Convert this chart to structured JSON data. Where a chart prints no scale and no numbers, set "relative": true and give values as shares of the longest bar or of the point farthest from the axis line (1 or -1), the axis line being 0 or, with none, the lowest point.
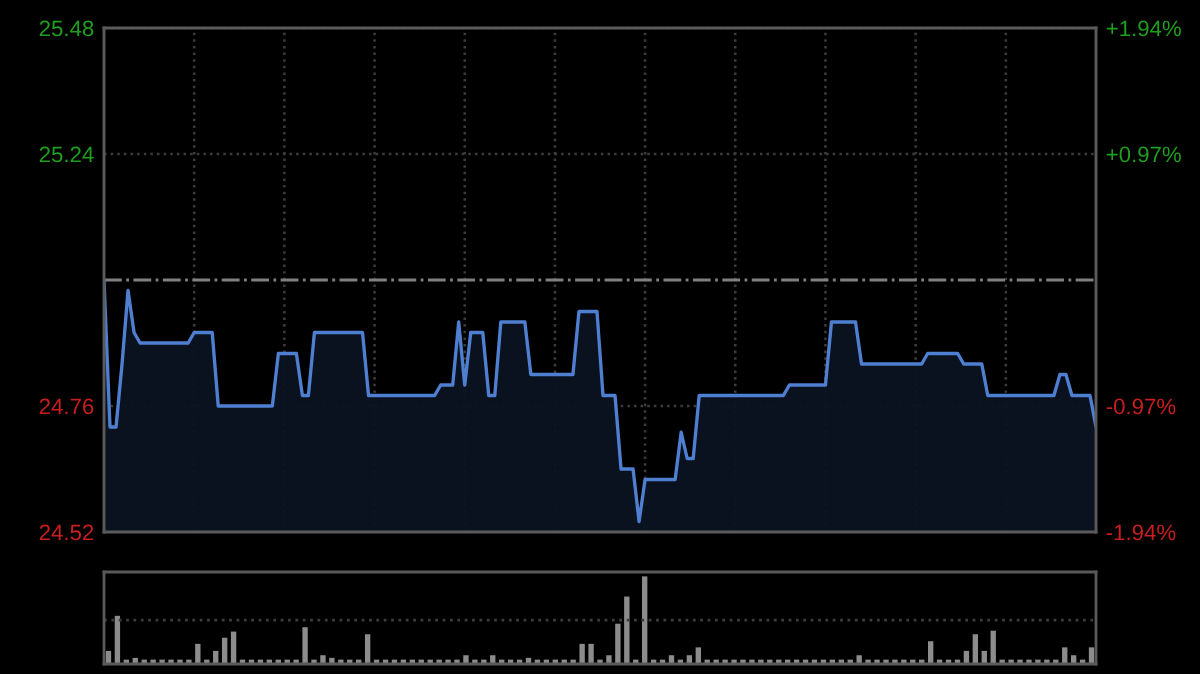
{
  "chart_data": [
    {
      "type": "area",
      "categories": [
        null,
        null,
        null,
        null,
        null,
        null,
        null,
        null,
        null,
        null,
        null,
        null,
        null,
        null,
        null,
        null,
        null,
        null,
        null,
        null,
        null,
        null,
        null,
        null,
        null,
        null,
        null,
        null,
        null,
        null,
        null,
        null,
        null,
        null,
        null,
        null,
        null,
        null,
        null,
        null,
        null,
        null,
        null,
        null,
        null,
        null,
        null,
        null,
        null,
        null,
        null,
        null,
        null,
        null,
        null,
        null,
        null,
        null,
        null,
        null,
        null,
        null,
        null,
        null,
        null,
        null,
        null,
        null,
        null,
        null,
        null,
        null,
        null,
        null,
        null,
        null,
        null,
        null,
        null,
        null,
        null,
        null,
        null,
        null,
        null,
        null,
        null,
        null,
        null,
        null,
        null,
        null,
        null,
        null,
        null,
        null,
        null,
        null,
        null,
        null,
        null,
        null,
        null,
        null,
        null,
        null,
        null,
        null,
        null,
        null,
        null,
        null,
        null,
        null,
        null,
        null,
        null,
        null,
        null,
        null,
        null,
        null,
        null,
        null,
        null,
        null,
        null,
        null,
        null,
        null,
        null,
        null,
        null,
        null,
        null,
        null,
        null,
        null,
        null,
        null,
        null,
        null,
        null,
        null,
        null,
        null,
        null,
        null,
        null,
        null,
        null,
        null,
        null,
        null,
        null,
        null,
        null,
        null,
        null,
        null,
        null,
        null,
        null,
        null,
        null,
        null
      ],
      "series": [
        {
          "color": "#4f7fd0",
          "values": [
            25.0,
            24.72,
            24.72,
            24.84,
            24.98,
            24.9,
            24.88,
            24.88,
            24.88,
            24.88,
            24.88,
            24.88,
            24.88,
            24.88,
            24.88,
            24.9,
            24.9,
            24.9,
            24.9,
            24.76,
            24.76,
            24.76,
            24.76,
            24.76,
            24.76,
            24.76,
            24.76,
            24.76,
            24.76,
            24.86,
            24.86,
            24.86,
            24.86,
            24.78,
            24.78,
            24.9,
            24.9,
            24.9,
            24.9,
            24.9,
            24.9,
            24.9,
            24.9,
            24.9,
            24.78,
            24.78,
            24.78,
            24.78,
            24.78,
            24.78,
            24.78,
            24.78,
            24.78,
            24.78,
            24.78,
            24.78,
            24.8,
            24.8,
            24.8,
            24.92,
            24.8,
            24.9,
            24.9,
            24.9,
            24.78,
            24.78,
            24.92,
            24.92,
            24.92,
            24.92,
            24.92,
            24.82,
            24.82,
            24.82,
            24.82,
            24.82,
            24.82,
            24.82,
            24.82,
            24.94,
            24.94,
            24.94,
            24.94,
            24.78,
            24.78,
            24.78,
            24.64,
            24.64,
            24.64,
            24.54,
            24.62,
            24.62,
            24.62,
            24.62,
            24.62,
            24.62,
            24.71,
            24.66,
            24.66,
            24.78,
            24.78,
            24.78,
            24.78,
            24.78,
            24.78,
            24.78,
            24.78,
            24.78,
            24.78,
            24.78,
            24.78,
            24.78,
            24.78,
            24.78,
            24.8,
            24.8,
            24.8,
            24.8,
            24.8,
            24.8,
            24.8,
            24.92,
            24.92,
            24.92,
            24.92,
            24.92,
            24.84,
            24.84,
            24.84,
            24.84,
            24.84,
            24.84,
            24.84,
            24.84,
            24.84,
            24.84,
            24.84,
            24.86,
            24.86,
            24.86,
            24.86,
            24.86,
            24.86,
            24.84,
            24.84,
            24.84,
            24.84,
            24.78,
            24.78,
            24.78,
            24.78,
            24.78,
            24.78,
            24.78,
            24.78,
            24.78,
            24.78,
            24.78,
            24.78,
            24.82,
            24.82,
            24.78,
            24.78,
            24.78,
            24.78,
            24.72
          ]
        }
      ],
      "ylim": [
        24.52,
        25.48
      ],
      "yticks": [
        24.52,
        24.76,
        25.24,
        25.48
      ],
      "y2lim": [
        -1.94,
        1.94
      ],
      "y2ticks": [
        {
          "value": -1.94,
          "label": "-1.94%"
        },
        {
          "value": -0.97,
          "label": "-0.97%"
        },
        {
          "value": 0.97,
          "label": "+0.97%"
        },
        {
          "value": 1.94,
          "label": "+1.94%"
        }
      ],
      "ref_lines": [
        {
          "axis": "y",
          "value": 25.0,
          "color": "#808080",
          "line_style": "dashdot"
        }
      ],
      "grid": true,
      "legend": false
    },
    {
      "type": "bar",
      "relative": true,
      "categories": [
        null,
        null,
        null,
        null,
        null,
        null,
        null,
        null,
        null,
        null,
        null,
        null,
        null,
        null,
        null,
        null,
        null,
        null,
        null,
        null,
        null,
        null,
        null,
        null,
        null,
        null,
        null,
        null,
        null,
        null,
        null,
        null,
        null,
        null,
        null,
        null,
        null,
        null,
        null,
        null,
        null,
        null,
        null,
        null,
        null,
        null,
        null,
        null,
        null,
        null,
        null,
        null,
        null,
        null,
        null,
        null,
        null,
        null,
        null,
        null,
        null,
        null,
        null,
        null,
        null,
        null,
        null,
        null,
        null,
        null,
        null,
        null,
        null,
        null,
        null,
        null,
        null,
        null,
        null,
        null,
        null,
        null,
        null,
        null,
        null,
        null,
        null,
        null,
        null,
        null,
        null,
        null,
        null,
        null,
        null,
        null,
        null,
        null,
        null,
        null,
        null,
        null,
        null,
        null,
        null,
        null,
        null,
        null,
        null,
        null,
        null
      ],
      "values": [
        0.15,
        0.55,
        0.05,
        0.07,
        0.05,
        0.05,
        0.05,
        0.05,
        0.05,
        0.05,
        0.23,
        0.05,
        0.15,
        0.3,
        0.37,
        0.05,
        0.05,
        0.05,
        0.05,
        0.05,
        0.05,
        0.05,
        0.42,
        0.05,
        0.1,
        0.07,
        0.05,
        0.05,
        0.05,
        0.34,
        0.05,
        0.05,
        0.05,
        0.05,
        0.05,
        0.05,
        0.05,
        0.05,
        0.05,
        0.05,
        0.1,
        0.05,
        0.05,
        0.1,
        0.05,
        0.05,
        0.05,
        0.07,
        0.05,
        0.05,
        0.05,
        0.05,
        0.05,
        0.23,
        0.23,
        0.05,
        0.1,
        0.46,
        0.77,
        0.05,
        1,
        0.05,
        0.05,
        0.1,
        0.05,
        0.1,
        0.19,
        0.05,
        0.05,
        0.05,
        0.05,
        0.05,
        0.05,
        0.05,
        0.05,
        0.05,
        0.05,
        0.05,
        0.05,
        0.05,
        0.05,
        0.05,
        0.05,
        0.05,
        0.1,
        0.05,
        0.05,
        0.05,
        0.05,
        0.05,
        0.05,
        0.05,
        0.26,
        0.05,
        0.05,
        0.05,
        0.15,
        0.34,
        0.15,
        0.38,
        0.05,
        0.05,
        0.05,
        0.05,
        0.05,
        0.05,
        0.05,
        0.19,
        0.1,
        0.05,
        0.19
      ],
      "color": "#8c8c8c",
      "ref_lines": [
        {
          "axis": "y",
          "value": 0.5,
          "color": "#3c3c3c",
          "line_style": "dotted"
        }
      ]
    }
  ]
}
